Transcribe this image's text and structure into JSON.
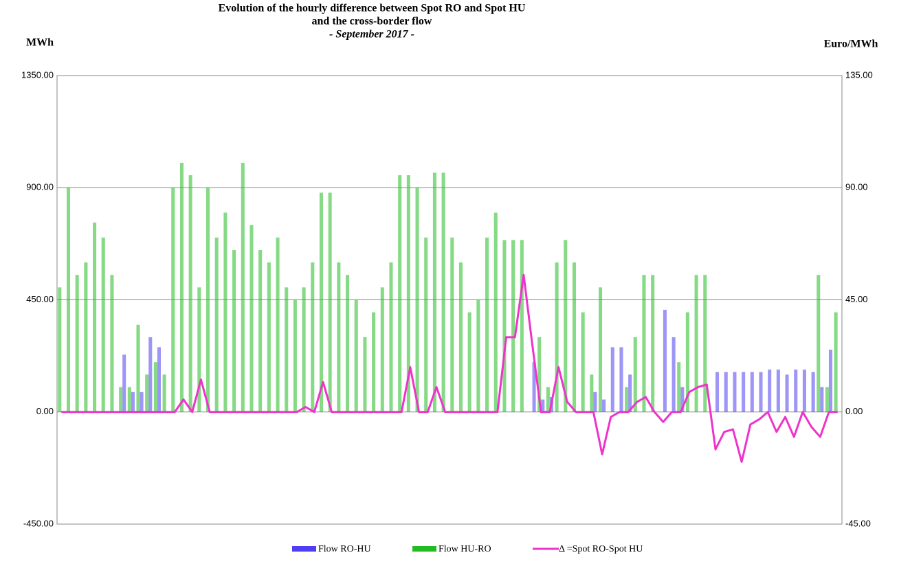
{
  "chart_data": {
    "type": "bar_line",
    "title_lines": [
      "Evolution of the hourly difference between Spot RO and Spot HU",
      "and the cross-border flow",
      "- September 2017 -"
    ],
    "y_axis_label": "MWh",
    "y2_axis_label": "Euro/MWh",
    "ylim": [
      -450,
      1350
    ],
    "yticks": [
      {
        "value": -450,
        "label": "-450.00"
      },
      {
        "value": 0,
        "label": "0.00"
      },
      {
        "value": 450,
        "label": "450.00"
      },
      {
        "value": 900,
        "label": "900.00"
      },
      {
        "value": 1350,
        "label": "1350.00"
      }
    ],
    "y2lim": [
      -45,
      135
    ],
    "y2ticks": [
      {
        "value": -45,
        "label": "-45.00"
      },
      {
        "value": 0,
        "label": "0.00"
      },
      {
        "value": 45,
        "label": "45.00"
      },
      {
        "value": 90,
        "label": "90.00"
      },
      {
        "value": 135,
        "label": "135.00"
      }
    ],
    "grid": true,
    "series": [
      {
        "name": "Flow RO-HU",
        "type": "bar",
        "color": "#4f3ff0",
        "values": [
          0,
          0,
          0,
          0,
          0,
          0,
          0,
          230,
          80,
          80,
          300,
          260,
          0,
          0,
          0,
          0,
          0,
          0,
          0,
          0,
          0,
          0,
          0,
          0,
          0,
          0,
          0,
          0,
          0,
          0,
          0,
          0,
          0,
          0,
          0,
          0,
          0,
          0,
          0,
          0,
          0,
          0,
          0,
          0,
          0,
          0,
          0,
          0,
          0,
          0,
          0,
          0,
          0,
          0,
          200,
          50,
          60,
          0,
          0,
          0,
          0,
          80,
          50,
          260,
          260,
          150,
          0,
          0,
          0,
          410,
          300,
          100,
          0,
          0,
          0,
          160,
          160,
          160,
          160,
          160,
          160,
          170,
          170,
          150,
          170,
          170,
          160,
          100,
          250,
          0
        ]
      },
      {
        "name": "Flow HU-RO",
        "type": "bar",
        "color": "#22bb22",
        "values": [
          500,
          900,
          550,
          600,
          760,
          700,
          550,
          100,
          100,
          350,
          150,
          200,
          150,
          900,
          1000,
          950,
          500,
          900,
          700,
          800,
          650,
          1000,
          750,
          650,
          600,
          700,
          500,
          450,
          500,
          600,
          880,
          880,
          600,
          550,
          450,
          300,
          400,
          500,
          600,
          950,
          950,
          900,
          700,
          960,
          960,
          700,
          600,
          400,
          450,
          700,
          800,
          690,
          690,
          690,
          0,
          300,
          100,
          600,
          690,
          600,
          400,
          150,
          500,
          0,
          0,
          100,
          300,
          550,
          550,
          0,
          0,
          200,
          400,
          550,
          550,
          0,
          0,
          0,
          0,
          0,
          0,
          0,
          0,
          0,
          0,
          0,
          0,
          550,
          100,
          400
        ]
      },
      {
        "name": "Δ =Spot RO-Spot HU",
        "type": "line",
        "axis": "y2",
        "color": "#ee33cc",
        "values": [
          0,
          0,
          0,
          0,
          0,
          0,
          0,
          0,
          0,
          0,
          0,
          0,
          0,
          0,
          5,
          0,
          13,
          0,
          0,
          0,
          0,
          0,
          0,
          0,
          0,
          0,
          0,
          0,
          2,
          0,
          12,
          0,
          0,
          0,
          0,
          0,
          0,
          0,
          0,
          0,
          18,
          0,
          0,
          10,
          0,
          0,
          0,
          0,
          0,
          0,
          0,
          30,
          30,
          55,
          27,
          0,
          0,
          18,
          4,
          0,
          0,
          0,
          -17,
          -2,
          0,
          0,
          4,
          6,
          0,
          -4,
          0,
          0,
          8,
          10,
          11,
          -15,
          -8,
          -7,
          -20,
          -5,
          -3,
          0,
          -8,
          -2,
          -10,
          0,
          -6,
          -10,
          0,
          0
        ]
      }
    ]
  }
}
